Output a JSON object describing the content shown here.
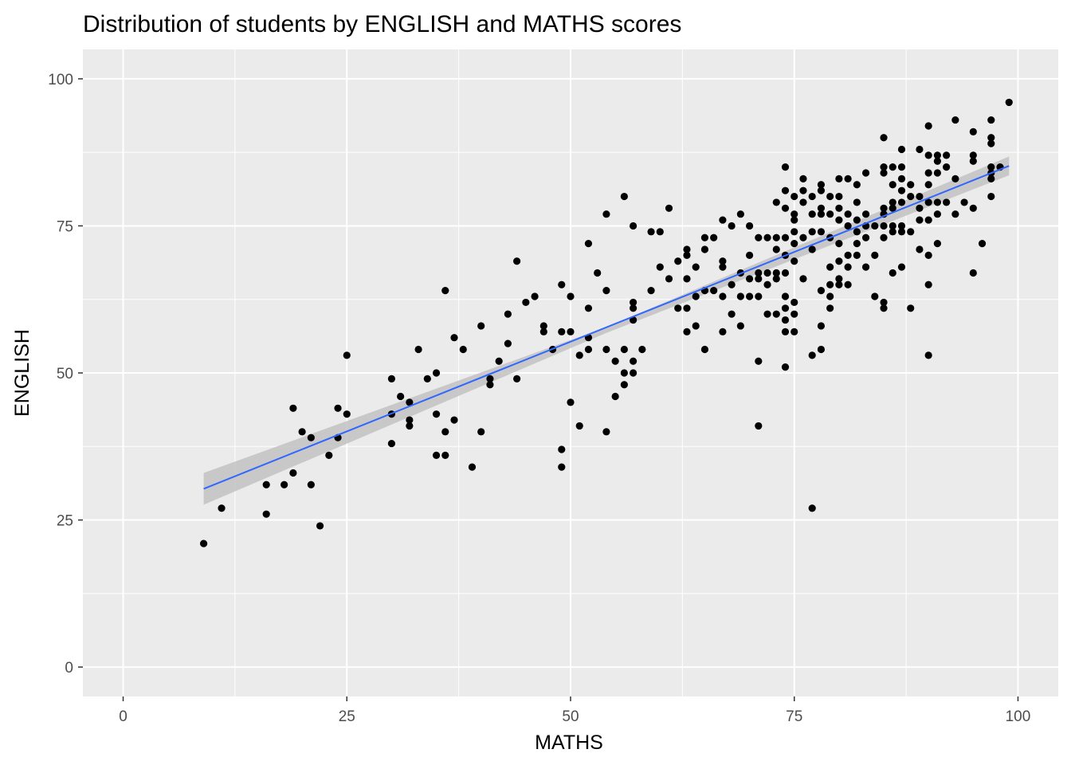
{
  "chart_data": {
    "type": "scatter",
    "title": "Distribution of students by ENGLISH and MATHS scores",
    "xlabel": "MATHS",
    "ylabel": "ENGLISH",
    "xlim": [
      -4.5,
      104.5
    ],
    "ylim": [
      -5,
      105
    ],
    "x_ticks": [
      0,
      25,
      50,
      75,
      100
    ],
    "y_ticks": [
      0,
      25,
      50,
      75,
      100
    ],
    "x_tick_labels": [
      "0",
      "25",
      "50",
      "75",
      "100"
    ],
    "y_tick_labels": [
      "0",
      "25",
      "50",
      "75",
      "100"
    ],
    "grid": true,
    "legend": "none",
    "colors": {
      "panel": "#ebebeb",
      "grid": "#ffffff",
      "point": "#000000",
      "trend_line": "#3366ff",
      "confidence_band": "#c2c2c2"
    },
    "trend_line": {
      "method": "linear",
      "x": [
        9,
        99
      ],
      "y": [
        30.3,
        85.2
      ],
      "confidence_band": {
        "x": [
          9,
          54,
          99
        ],
        "lower": [
          27.6,
          56.8,
          83.6
        ],
        "upper": [
          33.0,
          57.8,
          86.8
        ]
      }
    },
    "points": [
      [
        9,
        21
      ],
      [
        11,
        27
      ],
      [
        16,
        31
      ],
      [
        16,
        26
      ],
      [
        18,
        31
      ],
      [
        19,
        44
      ],
      [
        19,
        33
      ],
      [
        20,
        40
      ],
      [
        21,
        39
      ],
      [
        21,
        31
      ],
      [
        22,
        24
      ],
      [
        23,
        36
      ],
      [
        24,
        44
      ],
      [
        24,
        39
      ],
      [
        25,
        53
      ],
      [
        25,
        43
      ],
      [
        30,
        49
      ],
      [
        30,
        43
      ],
      [
        30,
        38
      ],
      [
        31,
        46
      ],
      [
        32,
        45
      ],
      [
        32,
        42
      ],
      [
        32,
        41
      ],
      [
        33,
        54
      ],
      [
        34,
        49
      ],
      [
        35,
        50
      ],
      [
        35,
        43
      ],
      [
        35,
        36
      ],
      [
        36,
        64
      ],
      [
        36,
        40
      ],
      [
        36,
        36
      ],
      [
        37,
        56
      ],
      [
        37,
        42
      ],
      [
        38,
        54
      ],
      [
        39,
        34
      ],
      [
        40,
        58
      ],
      [
        40,
        40
      ],
      [
        41,
        49
      ],
      [
        41,
        48
      ],
      [
        42,
        52
      ],
      [
        43,
        60
      ],
      [
        43,
        55
      ],
      [
        44,
        69
      ],
      [
        44,
        49
      ],
      [
        45,
        62
      ],
      [
        46,
        63
      ],
      [
        47,
        58
      ],
      [
        47,
        57
      ],
      [
        48,
        54
      ],
      [
        49,
        65
      ],
      [
        49,
        57
      ],
      [
        49,
        37
      ],
      [
        49,
        34
      ],
      [
        50,
        63
      ],
      [
        50,
        57
      ],
      [
        50,
        45
      ],
      [
        51,
        53
      ],
      [
        51,
        41
      ],
      [
        52,
        72
      ],
      [
        52,
        61
      ],
      [
        52,
        56
      ],
      [
        52,
        54
      ],
      [
        53,
        67
      ],
      [
        54,
        77
      ],
      [
        54,
        64
      ],
      [
        54,
        54
      ],
      [
        54,
        40
      ],
      [
        55,
        52
      ],
      [
        55,
        46
      ],
      [
        56,
        80
      ],
      [
        56,
        54
      ],
      [
        56,
        50
      ],
      [
        56,
        48
      ],
      [
        57,
        75
      ],
      [
        57,
        62
      ],
      [
        57,
        61
      ],
      [
        57,
        59
      ],
      [
        57,
        52
      ],
      [
        57,
        50
      ],
      [
        58,
        54
      ],
      [
        59,
        74
      ],
      [
        59,
        64
      ],
      [
        60,
        74
      ],
      [
        60,
        68
      ],
      [
        61,
        78
      ],
      [
        61,
        66
      ],
      [
        62,
        69
      ],
      [
        62,
        61
      ],
      [
        63,
        71
      ],
      [
        63,
        70
      ],
      [
        63,
        66
      ],
      [
        63,
        61
      ],
      [
        63,
        57
      ],
      [
        64,
        68
      ],
      [
        64,
        63
      ],
      [
        64,
        58
      ],
      [
        65,
        73
      ],
      [
        65,
        71
      ],
      [
        65,
        64
      ],
      [
        65,
        54
      ],
      [
        66,
        73
      ],
      [
        66,
        64
      ],
      [
        67,
        76
      ],
      [
        67,
        69
      ],
      [
        67,
        68
      ],
      [
        67,
        63
      ],
      [
        67,
        57
      ],
      [
        68,
        75
      ],
      [
        68,
        65
      ],
      [
        68,
        60
      ],
      [
        69,
        77
      ],
      [
        69,
        67
      ],
      [
        69,
        63
      ],
      [
        69,
        58
      ],
      [
        70,
        75
      ],
      [
        70,
        70
      ],
      [
        70,
        66
      ],
      [
        70,
        63
      ],
      [
        71,
        73
      ],
      [
        71,
        67
      ],
      [
        71,
        66
      ],
      [
        71,
        63
      ],
      [
        71,
        52
      ],
      [
        71,
        41
      ],
      [
        72,
        73
      ],
      [
        72,
        67
      ],
      [
        72,
        65
      ],
      [
        72,
        60
      ],
      [
        73,
        79
      ],
      [
        73,
        73
      ],
      [
        73,
        71
      ],
      [
        73,
        67
      ],
      [
        73,
        66
      ],
      [
        73,
        60
      ],
      [
        74,
        85
      ],
      [
        74,
        81
      ],
      [
        74,
        78
      ],
      [
        74,
        73
      ],
      [
        74,
        70
      ],
      [
        74,
        67
      ],
      [
        74,
        63
      ],
      [
        74,
        61
      ],
      [
        74,
        59
      ],
      [
        74,
        57
      ],
      [
        74,
        51
      ],
      [
        75,
        80
      ],
      [
        75,
        77
      ],
      [
        75,
        76
      ],
      [
        75,
        74
      ],
      [
        75,
        72
      ],
      [
        75,
        69
      ],
      [
        75,
        62
      ],
      [
        75,
        60
      ],
      [
        75,
        57
      ],
      [
        76,
        83
      ],
      [
        76,
        81
      ],
      [
        76,
        79
      ],
      [
        76,
        73
      ],
      [
        76,
        66
      ],
      [
        77,
        80
      ],
      [
        77,
        77
      ],
      [
        77,
        74
      ],
      [
        77,
        71
      ],
      [
        77,
        53
      ],
      [
        77,
        27
      ],
      [
        78,
        82
      ],
      [
        78,
        81
      ],
      [
        78,
        78
      ],
      [
        78,
        77
      ],
      [
        78,
        74
      ],
      [
        78,
        64
      ],
      [
        78,
        58
      ],
      [
        78,
        54
      ],
      [
        79,
        80
      ],
      [
        79,
        77
      ],
      [
        79,
        73
      ],
      [
        79,
        68
      ],
      [
        79,
        65
      ],
      [
        79,
        63
      ],
      [
        79,
        61
      ],
      [
        80,
        83
      ],
      [
        80,
        80
      ],
      [
        80,
        78
      ],
      [
        80,
        76
      ],
      [
        80,
        72
      ],
      [
        80,
        69
      ],
      [
        80,
        66
      ],
      [
        80,
        65
      ],
      [
        81,
        83
      ],
      [
        81,
        77
      ],
      [
        81,
        75
      ],
      [
        81,
        70
      ],
      [
        81,
        68
      ],
      [
        81,
        65
      ],
      [
        82,
        82
      ],
      [
        82,
        79
      ],
      [
        82,
        76
      ],
      [
        82,
        74
      ],
      [
        82,
        72
      ],
      [
        82,
        70
      ],
      [
        83,
        84
      ],
      [
        83,
        77
      ],
      [
        83,
        75
      ],
      [
        83,
        73
      ],
      [
        83,
        68
      ],
      [
        84,
        75
      ],
      [
        84,
        70
      ],
      [
        84,
        63
      ],
      [
        85,
        90
      ],
      [
        85,
        85
      ],
      [
        85,
        84
      ],
      [
        85,
        78
      ],
      [
        85,
        77
      ],
      [
        85,
        75
      ],
      [
        85,
        73
      ],
      [
        85,
        62
      ],
      [
        85,
        61
      ],
      [
        86,
        85
      ],
      [
        86,
        82
      ],
      [
        86,
        79
      ],
      [
        86,
        78
      ],
      [
        86,
        75
      ],
      [
        86,
        74
      ],
      [
        86,
        67
      ],
      [
        87,
        88
      ],
      [
        87,
        85
      ],
      [
        87,
        83
      ],
      [
        87,
        81
      ],
      [
        87,
        79
      ],
      [
        87,
        75
      ],
      [
        87,
        74
      ],
      [
        87,
        68
      ],
      [
        88,
        82
      ],
      [
        88,
        80
      ],
      [
        88,
        74
      ],
      [
        88,
        61
      ],
      [
        89,
        88
      ],
      [
        89,
        80
      ],
      [
        89,
        78
      ],
      [
        89,
        76
      ],
      [
        89,
        71
      ],
      [
        90,
        92
      ],
      [
        90,
        87
      ],
      [
        90,
        84
      ],
      [
        90,
        82
      ],
      [
        90,
        79
      ],
      [
        90,
        76
      ],
      [
        90,
        70
      ],
      [
        90,
        65
      ],
      [
        90,
        53
      ],
      [
        91,
        87
      ],
      [
        91,
        86
      ],
      [
        91,
        84
      ],
      [
        91,
        79
      ],
      [
        91,
        77
      ],
      [
        91,
        72
      ],
      [
        92,
        87
      ],
      [
        92,
        85
      ],
      [
        92,
        79
      ],
      [
        93,
        93
      ],
      [
        93,
        83
      ],
      [
        93,
        77
      ],
      [
        94,
        79
      ],
      [
        95,
        91
      ],
      [
        95,
        87
      ],
      [
        95,
        86
      ],
      [
        95,
        78
      ],
      [
        95,
        67
      ],
      [
        96,
        72
      ],
      [
        97,
        93
      ],
      [
        97,
        90
      ],
      [
        97,
        89
      ],
      [
        97,
        85
      ],
      [
        97,
        84
      ],
      [
        97,
        83
      ],
      [
        97,
        80
      ],
      [
        98,
        85
      ],
      [
        99,
        96
      ]
    ]
  }
}
